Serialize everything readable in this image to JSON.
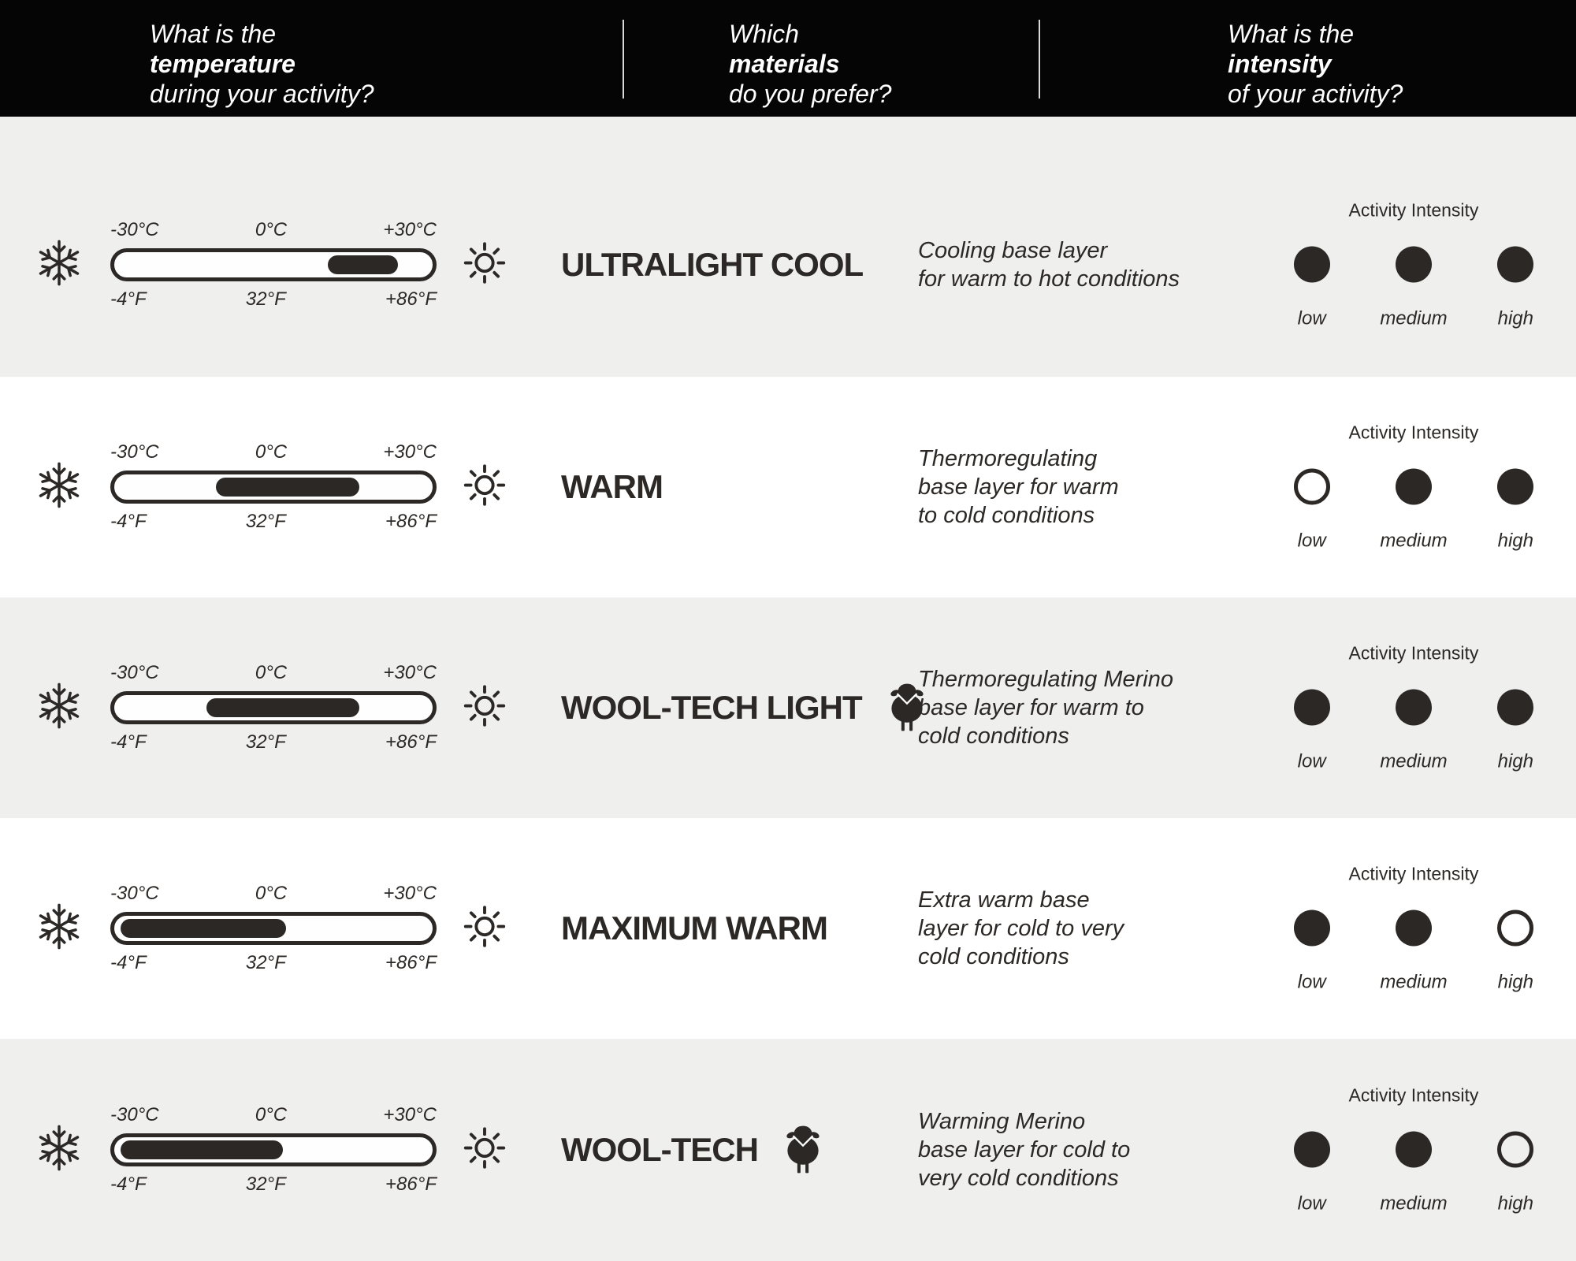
{
  "header": {
    "columns": [
      {
        "line1": "What is the",
        "line2": "temperature",
        "line3": "during your activity?"
      },
      {
        "line1": "Which",
        "line2": "materials",
        "line3": "do you prefer?"
      },
      {
        "line1": "What is the",
        "line2": "intensity",
        "line3": "of your activity?"
      }
    ]
  },
  "thermometer": {
    "top_labels": [
      "-30°C",
      "0°C",
      "+30°C"
    ],
    "bottom_labels": [
      "-4°F",
      "32°F",
      "+86°F"
    ],
    "cold_icon": "snowflake",
    "hot_icon": "sun"
  },
  "intensity": {
    "title": "Activity Intensity",
    "levels": [
      "low",
      "medium",
      "high"
    ]
  },
  "colors": {
    "ink": "#2b2826",
    "row_alt_bg": "#efefee",
    "row_bg": "#ffffff",
    "header_bg": "#050505"
  },
  "rows": [
    {
      "name": "ULTRALIGHT COOL",
      "has_sheep_icon": false,
      "description": [
        "Cooling base layer",
        "for warm to hot conditions"
      ],
      "temp_fill": {
        "start_pct": 67,
        "end_pct": 89
      },
      "intensity_filled": [
        true,
        true,
        true
      ]
    },
    {
      "name": "WARM",
      "has_sheep_icon": false,
      "description": [
        "Thermoregulating",
        "base layer for warm",
        "to cold conditions"
      ],
      "temp_fill": {
        "start_pct": 32,
        "end_pct": 77
      },
      "intensity_filled": [
        false,
        true,
        true
      ]
    },
    {
      "name": "WOOL-TECH LIGHT",
      "has_sheep_icon": true,
      "description": [
        "Thermoregulating Merino",
        "base layer for warm to",
        "cold conditions"
      ],
      "temp_fill": {
        "start_pct": 29,
        "end_pct": 77
      },
      "intensity_filled": [
        true,
        true,
        true
      ]
    },
    {
      "name": "MAXIMUM WARM",
      "has_sheep_icon": false,
      "description": [
        "Extra warm base",
        "layer for cold to very",
        "cold conditions"
      ],
      "temp_fill": {
        "start_pct": 2,
        "end_pct": 54
      },
      "intensity_filled": [
        true,
        true,
        false
      ]
    },
    {
      "name": "WOOL-TECH",
      "has_sheep_icon": true,
      "description": [
        "Warming Merino",
        "base layer for cold to",
        "very cold conditions"
      ],
      "temp_fill": {
        "start_pct": 2,
        "end_pct": 53
      },
      "intensity_filled": [
        true,
        true,
        false
      ]
    }
  ]
}
